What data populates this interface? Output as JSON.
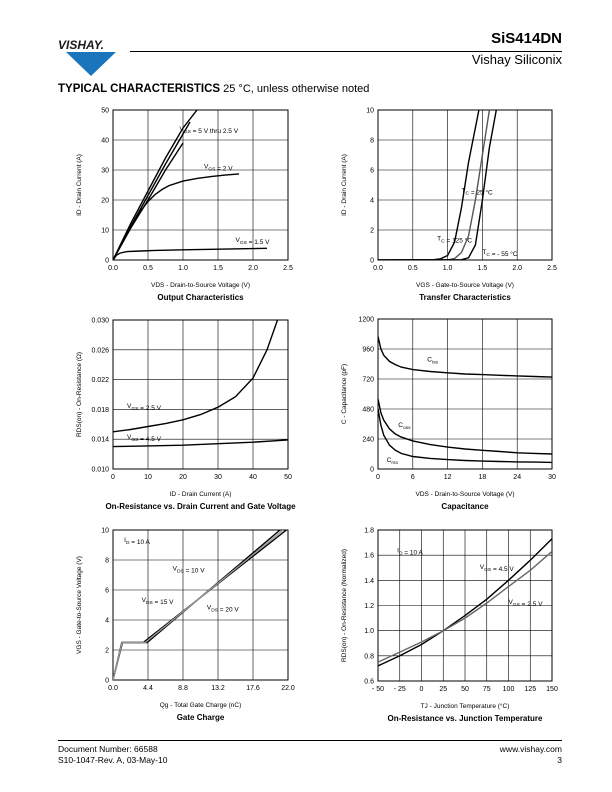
{
  "header": {
    "logo_text": "VISHAY.",
    "part_number": "SiS414DN",
    "company": "Vishay Siliconix"
  },
  "section": {
    "title": "TYPICAL CHARACTERISTICS",
    "condition": "25 °C, unless otherwise noted"
  },
  "footer": {
    "doc_number": "Document Number: 66588",
    "revision": "S10-1047-Rev. A, 03-May-10",
    "website": "www.vishay.com",
    "page": "3"
  },
  "chart_data": [
    {
      "id": "output",
      "type": "line",
      "title": "Output Characteristics",
      "xlabel": "VDS - Drain-to-Source Voltage (V)",
      "ylabel": "ID - Drain Current (A)",
      "xlim": [
        0,
        2.5
      ],
      "ylim": [
        0,
        50
      ],
      "xticks": [
        "0.0",
        "0.5",
        "1.0",
        "1.5",
        "2.0",
        "2.5"
      ],
      "yticks": [
        "0",
        "10",
        "20",
        "30",
        "40",
        "50"
      ],
      "grid": true,
      "series": [
        {
          "x": [
            0,
            0.25,
            0.5,
            0.75,
            1.0,
            1.2
          ],
          "y": [
            0,
            12,
            23,
            34,
            44,
            50
          ]
        },
        {
          "x": [
            0,
            0.25,
            0.5,
            0.75,
            1.0,
            1.1
          ],
          "y": [
            0,
            11,
            21.5,
            32,
            42,
            46
          ]
        },
        {
          "x": [
            0,
            0.25,
            0.5,
            0.75,
            1.0
          ],
          "y": [
            0,
            10.5,
            20,
            30,
            39
          ]
        },
        {
          "x": [
            0,
            0.1,
            0.2,
            0.3,
            0.4,
            0.5,
            0.6,
            0.7,
            0.8,
            1.0,
            1.2,
            1.4,
            1.6,
            1.8
          ],
          "y": [
            0,
            4.5,
            9,
            13,
            16.5,
            19.5,
            21.8,
            23.5,
            24.8,
            26.3,
            27.2,
            27.8,
            28.3,
            28.7
          ]
        },
        {
          "x": [
            0,
            0.05,
            0.1,
            0.2,
            0.4,
            0.6,
            1.0,
            1.5,
            2.0,
            2.2
          ],
          "y": [
            0,
            1.6,
            2.3,
            2.8,
            3.0,
            3.2,
            3.4,
            3.6,
            3.8,
            3.9
          ]
        }
      ],
      "annotations": [
        {
          "x": 0.95,
          "y": 43,
          "parts": [
            {
              "t": "V"
            },
            {
              "t": "GS",
              "sub": true
            },
            {
              "t": " = 5 V thru 2.5 V"
            }
          ]
        },
        {
          "x": 1.3,
          "y": 30.5,
          "parts": [
            {
              "t": "V"
            },
            {
              "t": "GS",
              "sub": true
            },
            {
              "t": " = 2 V"
            }
          ]
        },
        {
          "x": 1.75,
          "y": 6,
          "parts": [
            {
              "t": "V"
            },
            {
              "t": "GS",
              "sub": true
            },
            {
              "t": " = 1.5 V"
            }
          ]
        }
      ]
    },
    {
      "id": "transfer",
      "type": "line",
      "title": "Transfer Characteristics",
      "xlabel": "VGS - Gate-to-Source Voltage (V)",
      "ylabel": "ID - Drain Current (A)",
      "xlim": [
        0,
        2.5
      ],
      "ylim": [
        0,
        10
      ],
      "xticks": [
        "0.0",
        "0.5",
        "1.0",
        "1.5",
        "2.0",
        "2.5"
      ],
      "yticks": [
        "0",
        "2",
        "4",
        "6",
        "8",
        "10"
      ],
      "grid": true,
      "series": [
        {
          "x": [
            0,
            0.8,
            0.9,
            1.0,
            1.1,
            1.2,
            1.3,
            1.45
          ],
          "y": [
            0,
            0.02,
            0.08,
            0.3,
            1.2,
            3.5,
            6.5,
            10
          ]
        },
        {
          "x": [
            0,
            1.0,
            1.1,
            1.2,
            1.3,
            1.4,
            1.5,
            1.6
          ],
          "y": [
            0,
            0.01,
            0.1,
            0.5,
            1.6,
            4,
            7,
            10
          ]
        },
        {
          "x": [
            0,
            1.2,
            1.3,
            1.4,
            1.5,
            1.6,
            1.7
          ],
          "y": [
            0,
            0.02,
            0.15,
            1.0,
            4,
            7.5,
            10
          ]
        }
      ],
      "annotations": [
        {
          "x": 1.2,
          "y": 4.5,
          "parts": [
            {
              "t": "T"
            },
            {
              "t": "C",
              "sub": true
            },
            {
              "t": " = 25 °C"
            }
          ]
        },
        {
          "x": 0.85,
          "y": 1.3,
          "parts": [
            {
              "t": "T"
            },
            {
              "t": "C",
              "sub": true
            },
            {
              "t": " = 125 °C"
            }
          ]
        },
        {
          "x": 1.5,
          "y": 0.4,
          "parts": [
            {
              "t": "T"
            },
            {
              "t": "C",
              "sub": true
            },
            {
              "t": " = - 55 °C"
            }
          ]
        }
      ]
    },
    {
      "id": "rdson-id",
      "type": "line",
      "title": "On-Resistance vs. Drain Current and Gate Voltage",
      "xlabel": "ID - Drain Current (A)",
      "ylabel": "RDS(on) - On-Resistance (Ω)",
      "xlim": [
        0,
        50
      ],
      "ylim": [
        0.01,
        0.03
      ],
      "xticks": [
        "0",
        "10",
        "20",
        "30",
        "40",
        "50"
      ],
      "yticks": [
        "0.010",
        "0.014",
        "0.018",
        "0.022",
        "0.026",
        "0.030"
      ],
      "grid": true,
      "series": [
        {
          "x": [
            0,
            5,
            10,
            15,
            20,
            25,
            30,
            35,
            40,
            44,
            47
          ],
          "y": [
            0.015,
            0.0153,
            0.0157,
            0.0161,
            0.0166,
            0.0173,
            0.0183,
            0.0197,
            0.0222,
            0.026,
            0.03
          ]
        },
        {
          "x": [
            0,
            10,
            20,
            30,
            40,
            50
          ],
          "y": [
            0.013,
            0.0131,
            0.0132,
            0.0134,
            0.0136,
            0.0139
          ]
        }
      ],
      "annotations": [
        {
          "x": 4,
          "y": 0.0182,
          "parts": [
            {
              "t": "V"
            },
            {
              "t": "GS",
              "sub": true
            },
            {
              "t": " = 2.5 V"
            }
          ]
        },
        {
          "x": 4,
          "y": 0.014,
          "parts": [
            {
              "t": "V"
            },
            {
              "t": "GS",
              "sub": true
            },
            {
              "t": " = 4.5 V"
            }
          ]
        }
      ]
    },
    {
      "id": "capacitance",
      "type": "line",
      "title": "Capacitance",
      "xlabel": "VDS - Drain-to-Source Voltage (V)",
      "ylabel": "C - Capacitance (pF)",
      "xlim": [
        0,
        30
      ],
      "ylim": [
        0,
        1200
      ],
      "xticks": [
        "0",
        "6",
        "12",
        "18",
        "24",
        "30"
      ],
      "yticks": [
        "0",
        "240",
        "480",
        "720",
        "960",
        "1200"
      ],
      "grid": true,
      "series": [
        {
          "x": [
            0,
            0.5,
            1,
            2,
            3,
            4,
            6,
            9,
            12,
            15,
            18,
            21,
            24,
            27,
            30
          ],
          "y": [
            1060,
            960,
            910,
            860,
            835,
            815,
            795,
            780,
            770,
            760,
            755,
            750,
            745,
            740,
            735
          ]
        },
        {
          "x": [
            0,
            0.5,
            1,
            2,
            3,
            4,
            6,
            9,
            12,
            15,
            18,
            21,
            24,
            27,
            30
          ],
          "y": [
            560,
            450,
            390,
            320,
            280,
            255,
            225,
            195,
            175,
            160,
            150,
            140,
            130,
            125,
            120
          ]
        },
        {
          "x": [
            0,
            0.5,
            1,
            2,
            3,
            4,
            6,
            9,
            12,
            15,
            18,
            21,
            24,
            27,
            30
          ],
          "y": [
            480,
            350,
            270,
            190,
            150,
            125,
            100,
            85,
            75,
            68,
            63,
            60,
            57,
            55,
            53
          ]
        }
      ],
      "annotations": [
        {
          "x": 8.5,
          "y": 860,
          "parts": [
            {
              "t": "C"
            },
            {
              "t": "iss",
              "sub": true
            }
          ]
        },
        {
          "x": 3.5,
          "y": 335,
          "parts": [
            {
              "t": "C"
            },
            {
              "t": "oss",
              "sub": true
            }
          ]
        },
        {
          "x": 1.5,
          "y": 55,
          "parts": [
            {
              "t": "C"
            },
            {
              "t": "rss",
              "sub": true
            }
          ]
        }
      ]
    },
    {
      "id": "gate-charge",
      "type": "line",
      "title": "Gate Charge",
      "xlabel": "Qg - Total Gate Charge (nC)",
      "ylabel": "VGS - Gate-to-Source Voltage (V)",
      "xlim": [
        0,
        22
      ],
      "ylim": [
        0,
        10
      ],
      "xticks": [
        "0.0",
        "4.4",
        "8.8",
        "13.2",
        "17.6",
        "22.0"
      ],
      "yticks": [
        "0",
        "2",
        "4",
        "6",
        "8",
        "10"
      ],
      "grid": true,
      "series": [
        {
          "x": [
            0,
            1.1,
            2.7,
            3.8,
            21.8
          ],
          "y": [
            0,
            2.5,
            2.5,
            2.5,
            10
          ]
        },
        {
          "x": [
            0,
            1.2,
            2.8,
            4.3,
            21.0
          ],
          "y": [
            0,
            2.5,
            2.5,
            2.5,
            10
          ]
        },
        {
          "x": [
            0,
            1.15,
            2.75,
            4.05,
            21.4
          ],
          "y": [
            0,
            2.5,
            2.5,
            2.5,
            10
          ]
        }
      ],
      "annotations": [
        {
          "x": 1.4,
          "y": 9.2,
          "parts": [
            {
              "t": "I"
            },
            {
              "t": "D",
              "sub": true
            },
            {
              "t": " = 10 A"
            }
          ]
        },
        {
          "x": 7.5,
          "y": 7.3,
          "parts": [
            {
              "t": "V"
            },
            {
              "t": "DS",
              "sub": true
            },
            {
              "t": " = 10 V"
            }
          ]
        },
        {
          "x": 3.6,
          "y": 5.2,
          "parts": [
            {
              "t": "V"
            },
            {
              "t": "DS",
              "sub": true
            },
            {
              "t": " = 15 V"
            }
          ]
        },
        {
          "x": 11.8,
          "y": 4.7,
          "parts": [
            {
              "t": "V"
            },
            {
              "t": "DS",
              "sub": true
            },
            {
              "t": " = 20 V"
            }
          ]
        }
      ]
    },
    {
      "id": "rdson-tj",
      "type": "line",
      "title": "On-Resistance vs. Junction Temperature",
      "xlabel": "TJ - Junction Temperature (°C)",
      "ylabel": "RDS(on) - On-Resistance (Normalized)",
      "xlim": [
        -50,
        150
      ],
      "ylim": [
        0.6,
        1.8
      ],
      "xticks": [
        "- 50",
        "- 25",
        "0",
        "25",
        "50",
        "75",
        "100",
        "125",
        "150"
      ],
      "yticks": [
        "0.6",
        "0.8",
        "1.0",
        "1.2",
        "1.4",
        "1.6",
        "1.8"
      ],
      "grid": true,
      "series": [
        {
          "x": [
            -50,
            -25,
            0,
            25,
            50,
            75,
            100,
            125,
            150
          ],
          "y": [
            0.72,
            0.8,
            0.89,
            1.0,
            1.12,
            1.25,
            1.4,
            1.56,
            1.73
          ]
        },
        {
          "x": [
            -50,
            -25,
            0,
            25,
            50,
            75,
            100,
            125,
            150
          ],
          "y": [
            0.75,
            0.83,
            0.91,
            1.0,
            1.1,
            1.22,
            1.35,
            1.48,
            1.63
          ]
        }
      ],
      "annotations": [
        {
          "x": -28,
          "y": 1.62,
          "parts": [
            {
              "t": "I"
            },
            {
              "t": "D",
              "sub": true
            },
            {
              "t": " = 10 A"
            }
          ]
        },
        {
          "x": 67,
          "y": 1.49,
          "parts": [
            {
              "t": "V"
            },
            {
              "t": "GS",
              "sub": true
            },
            {
              "t": " = 4.5 V"
            }
          ]
        },
        {
          "x": 100,
          "y": 1.21,
          "parts": [
            {
              "t": "V"
            },
            {
              "t": "GS",
              "sub": true
            },
            {
              "t": " = 2.5 V"
            }
          ]
        }
      ]
    }
  ]
}
